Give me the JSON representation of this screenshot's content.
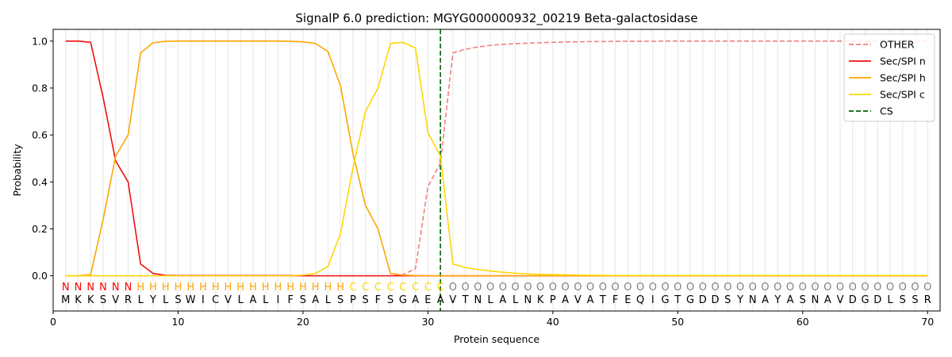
{
  "chart_data": {
    "type": "line",
    "title": "SignalP 6.0 prediction: MGYG000000932_00219 Beta-galactosidase",
    "xlabel": "Protein sequence",
    "ylabel": "Probability",
    "xlim": [
      0,
      71
    ],
    "ylim": [
      -0.15,
      1.05
    ],
    "x_ticks": [
      0,
      10,
      20,
      30,
      40,
      50,
      60,
      70
    ],
    "y_ticks": [
      0.0,
      0.2,
      0.4,
      0.6,
      0.8,
      1.0
    ],
    "y_tick_labels": [
      "0.0",
      "0.2",
      "0.4",
      "0.6",
      "0.8",
      "1.0"
    ],
    "grid": "vertical lines at each residue",
    "legend_position": "top-right",
    "sequence": [
      "M",
      "K",
      "K",
      "S",
      "V",
      "R",
      "L",
      "Y",
      "L",
      "S",
      "W",
      "I",
      "C",
      "V",
      "L",
      "A",
      "L",
      "I",
      "F",
      "S",
      "A",
      "L",
      "S",
      "P",
      "S",
      "F",
      "S",
      "G",
      "A",
      "E",
      "A",
      "V",
      "T",
      "N",
      "L",
      "A",
      "L",
      "N",
      "K",
      "P",
      "A",
      "V",
      "A",
      "T",
      "F",
      "E",
      "Q",
      "I",
      "G",
      "T",
      "G",
      "D",
      "D",
      "S",
      "Y",
      "N",
      "A",
      "Y",
      "A",
      "S",
      "N",
      "A",
      "V",
      "D",
      "G",
      "D",
      "L",
      "S",
      "S",
      "R"
    ],
    "labels": [
      "N",
      "N",
      "N",
      "N",
      "N",
      "N",
      "H",
      "H",
      "H",
      "H",
      "H",
      "H",
      "H",
      "H",
      "H",
      "H",
      "H",
      "H",
      "H",
      "H",
      "H",
      "H",
      "H",
      "C",
      "C",
      "C",
      "C",
      "C",
      "C",
      "C",
      "C",
      "O",
      "O",
      "O",
      "O",
      "O",
      "O",
      "O",
      "O",
      "O",
      "O",
      "O",
      "O",
      "O",
      "O",
      "O",
      "O",
      "O",
      "O",
      "O",
      "O",
      "O",
      "O",
      "O",
      "O",
      "O",
      "O",
      "O",
      "O",
      "O",
      "O",
      "O",
      "O",
      "O",
      "O",
      "O",
      "O",
      "O",
      "O",
      "O"
    ],
    "label_colors": {
      "N": "#ff0000",
      "H": "#ffa500",
      "C": "#ffd700",
      "O": "#808080"
    },
    "cleavage_site": 31,
    "series": [
      {
        "name": "OTHER",
        "color": "#f08080",
        "style": "dashed",
        "values": [
          0,
          0,
          0,
          0,
          0,
          0,
          0,
          0,
          0,
          0,
          0,
          0,
          0,
          0,
          0,
          0,
          0,
          0,
          0,
          0,
          0,
          0,
          0,
          0,
          0,
          0,
          0,
          0.005,
          0.03,
          0.38,
          0.48,
          0.95,
          0.965,
          0.975,
          0.982,
          0.986,
          0.989,
          0.991,
          0.993,
          0.995,
          0.996,
          0.997,
          0.998,
          0.998,
          0.999,
          0.999,
          0.999,
          0.999,
          1,
          1,
          1,
          1,
          1,
          1,
          1,
          1,
          1,
          1,
          1,
          1,
          1,
          1,
          1,
          1,
          1,
          1,
          1,
          1,
          1,
          1
        ]
      },
      {
        "name": "Sec/SPI n",
        "color": "#ee1111",
        "style": "solid",
        "values": [
          1.0,
          1.0,
          0.995,
          0.76,
          0.49,
          0.4,
          0.05,
          0.01,
          0.002,
          0.001,
          0.001,
          0.001,
          0.001,
          0.001,
          0.001,
          0.001,
          0.001,
          0.001,
          0.001,
          0,
          0,
          0,
          0,
          0,
          0,
          0,
          0,
          0,
          0,
          0,
          0,
          0,
          0,
          0,
          0,
          0,
          0,
          0,
          0,
          0,
          0,
          0,
          0,
          0,
          0,
          0,
          0,
          0,
          0,
          0,
          0,
          0,
          0,
          0,
          0,
          0,
          0,
          0,
          0,
          0,
          0,
          0,
          0,
          0,
          0,
          0,
          0,
          0,
          0,
          0
        ]
      },
      {
        "name": "Sec/SPI h",
        "color": "#ffa500",
        "style": "solid",
        "values": [
          0,
          0,
          0.005,
          0.24,
          0.51,
          0.6,
          0.95,
          0.993,
          0.999,
          1.0,
          1.0,
          1.0,
          1.0,
          1.0,
          1.0,
          1.0,
          1.0,
          1.0,
          0.999,
          0.997,
          0.99,
          0.955,
          0.81,
          0.52,
          0.3,
          0.2,
          0.01,
          0.003,
          0.001,
          0,
          0,
          0,
          0,
          0,
          0,
          0,
          0,
          0,
          0,
          0,
          0,
          0,
          0,
          0,
          0,
          0,
          0,
          0,
          0,
          0,
          0,
          0,
          0,
          0,
          0,
          0,
          0,
          0,
          0,
          0,
          0,
          0,
          0,
          0,
          0,
          0,
          0,
          0,
          0,
          0
        ]
      },
      {
        "name": "Sec/SPI c",
        "color": "#ffd700",
        "style": "solid",
        "values": [
          0,
          0,
          0,
          0,
          0,
          0,
          0,
          0,
          0,
          0,
          0,
          0,
          0,
          0,
          0,
          0,
          0,
          0,
          0,
          0.003,
          0.01,
          0.04,
          0.18,
          0.46,
          0.7,
          0.8,
          0.99,
          0.995,
          0.97,
          0.61,
          0.51,
          0.05,
          0.035,
          0.027,
          0.02,
          0.015,
          0.011,
          0.008,
          0.006,
          0.005,
          0.004,
          0.003,
          0.002,
          0.002,
          0.001,
          0.001,
          0.001,
          0.001,
          0.001,
          0.001,
          0.001,
          0.001,
          0.001,
          0.001,
          0.001,
          0.001,
          0.001,
          0.001,
          0.001,
          0.001,
          0.001,
          0.001,
          0.001,
          0.001,
          0.001,
          0.001,
          0.001,
          0.001,
          0.001,
          0.001
        ]
      },
      {
        "name": "CS",
        "color": "#006400",
        "style": "dashed"
      }
    ]
  }
}
